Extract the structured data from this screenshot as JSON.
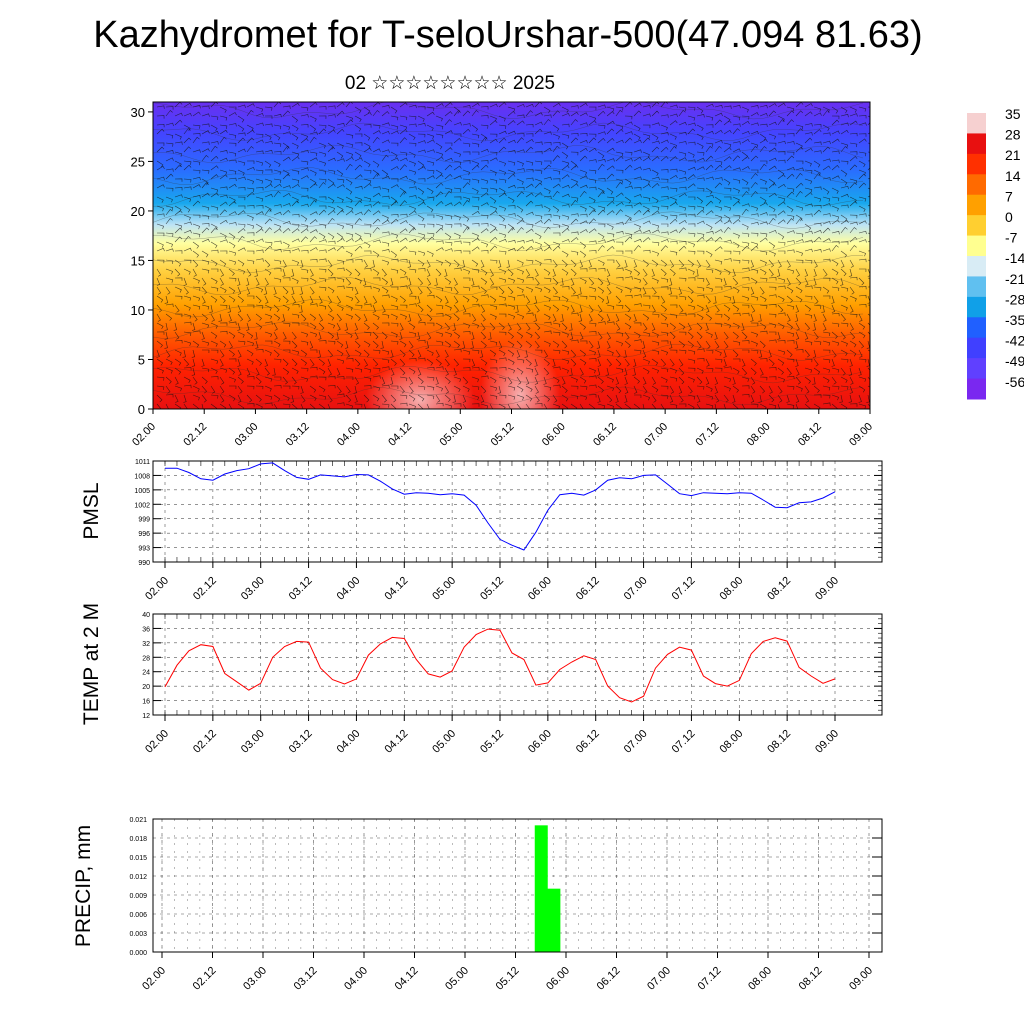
{
  "title": "Kazhydromet for T-seloUrshar-500(47.094 81.63)",
  "subtitle": "02 ☆☆☆☆☆☆☆☆ 2025",
  "colorbar": {
    "labels": [
      "35",
      "28",
      "21",
      "14",
      "7",
      "0",
      "-7",
      "-14",
      "-21",
      "-28",
      "-35",
      "-42",
      "-49",
      "-56"
    ],
    "colors": [
      "#f6d0d0",
      "#e81010",
      "#ff3000",
      "#ff6a00",
      "#ffa000",
      "#ffcf30",
      "#ffff90",
      "#d8ecf5",
      "#60c0f0",
      "#10a0e8",
      "#2060ff",
      "#4040ff",
      "#6040ff",
      "#7a28f0"
    ]
  },
  "time_ticks": [
    "02.00",
    "02.12",
    "03.00",
    "03.12",
    "04.00",
    "04.12",
    "05.00",
    "05.12",
    "06.00",
    "06.12",
    "07.00",
    "07.12",
    "08.00",
    "08.12",
    "09.00"
  ],
  "chart_data": [
    {
      "type": "heatmap",
      "name": "vertical cross-section",
      "x_categories": [
        "02.00",
        "02.12",
        "03.00",
        "03.12",
        "04.00",
        "04.12",
        "05.00",
        "05.12",
        "06.00",
        "06.12",
        "07.00",
        "07.12",
        "08.00",
        "08.12",
        "09.00"
      ],
      "y_ticks": [
        0,
        5,
        10,
        15,
        20,
        25,
        30
      ],
      "ylim": [
        0,
        31
      ],
      "zlim": [
        -56,
        35
      ]
    },
    {
      "type": "line",
      "ylabel": "PMSL",
      "ylim": [
        990,
        1011
      ],
      "y_ticks": [
        990,
        993,
        996,
        999,
        1002,
        1005,
        1008,
        1011
      ],
      "color": "#0000ff",
      "values": [
        1009.5,
        1009.5,
        1008.6,
        1007.3,
        1007.0,
        1008.3,
        1009.0,
        1009.4,
        1010.4,
        1010.6,
        1009.0,
        1007.6,
        1007.2,
        1008.1,
        1007.9,
        1007.7,
        1008.2,
        1008.1,
        1006.8,
        1005.2,
        1004.1,
        1004.4,
        1004.3,
        1004.0,
        1004.2,
        1003.9,
        1001.8,
        998.1,
        994.7,
        993.5,
        992.5,
        996.2,
        1000.8,
        1004.0,
        1004.3,
        1003.9,
        1005.0,
        1007.0,
        1007.5,
        1007.3,
        1008.0,
        1008.1,
        1006.2,
        1004.2,
        1003.8,
        1004.4,
        1004.3,
        1004.2,
        1004.4,
        1004.3,
        1002.9,
        1001.4,
        1001.3,
        1002.3,
        1002.5,
        1003.3,
        1004.6
      ]
    },
    {
      "type": "line",
      "ylabel": "TEMP at 2 M",
      "ylim": [
        12,
        40
      ],
      "y_ticks": [
        12,
        16,
        20,
        24,
        28,
        32,
        36,
        40
      ],
      "color": "#ff0000",
      "values": [
        19.8,
        25.8,
        29.8,
        31.5,
        31.0,
        23.5,
        21.2,
        18.9,
        20.8,
        28.0,
        31.0,
        32.4,
        32.2,
        25.0,
        21.8,
        20.6,
        22.0,
        28.6,
        31.7,
        33.5,
        33.2,
        27.4,
        23.4,
        22.5,
        24.2,
        30.8,
        34.3,
        35.8,
        35.5,
        29.2,
        27.4,
        20.3,
        20.9,
        24.6,
        26.7,
        28.4,
        27.4,
        20.0,
        16.8,
        15.6,
        17.2,
        25.0,
        28.8,
        30.8,
        30.0,
        22.8,
        20.7,
        20.0,
        21.6,
        29.0,
        32.4,
        33.4,
        32.5,
        25.2,
        22.8,
        20.8,
        22.0
      ]
    },
    {
      "type": "bar",
      "ylabel": "PRECIP, mm",
      "ylim": [
        0,
        0.021
      ],
      "y_ticks": [
        "0.000",
        "0.003",
        "0.006",
        "0.009",
        "0.012",
        "0.015",
        "0.018",
        "0.021"
      ],
      "color": "#00ff00",
      "bars": [
        {
          "x": "05.18",
          "value": 0.02
        },
        {
          "x": "05.21",
          "value": 0.01
        }
      ]
    }
  ]
}
